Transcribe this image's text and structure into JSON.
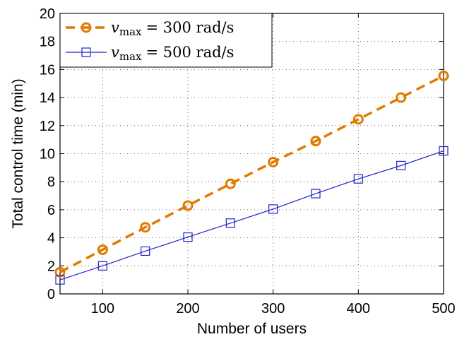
{
  "chart_data": {
    "type": "line",
    "title": "",
    "xlabel": "Number of users",
    "ylabel": "Total control time (min)",
    "xlim": [
      50,
      500
    ],
    "ylim": [
      0,
      20
    ],
    "xticks": [
      100,
      200,
      300,
      400,
      500
    ],
    "yticks": [
      0,
      2,
      4,
      6,
      8,
      10,
      12,
      14,
      16,
      18,
      20
    ],
    "grid": true,
    "legend_position": "top-left",
    "x": [
      50,
      100,
      150,
      200,
      250,
      300,
      350,
      400,
      450,
      500
    ],
    "series": [
      {
        "name": "v_max = 300 rad/s",
        "legend_var": "v",
        "legend_sub": "max",
        "legend_rest": "= 300 rad/s",
        "color": "#e07b00",
        "marker": "circle",
        "line_style": "dashed",
        "values": [
          1.55,
          3.15,
          4.75,
          6.3,
          7.85,
          9.4,
          10.9,
          12.45,
          14.0,
          15.55
        ]
      },
      {
        "name": "v_max = 500 rad/s",
        "legend_var": "v",
        "legend_sub": "max",
        "legend_rest": "= 500 rad/s",
        "color": "#2222cc",
        "marker": "square",
        "line_style": "solid",
        "values": [
          1.0,
          2.0,
          3.05,
          4.05,
          5.05,
          6.05,
          7.15,
          8.2,
          9.15,
          10.2
        ]
      }
    ]
  }
}
